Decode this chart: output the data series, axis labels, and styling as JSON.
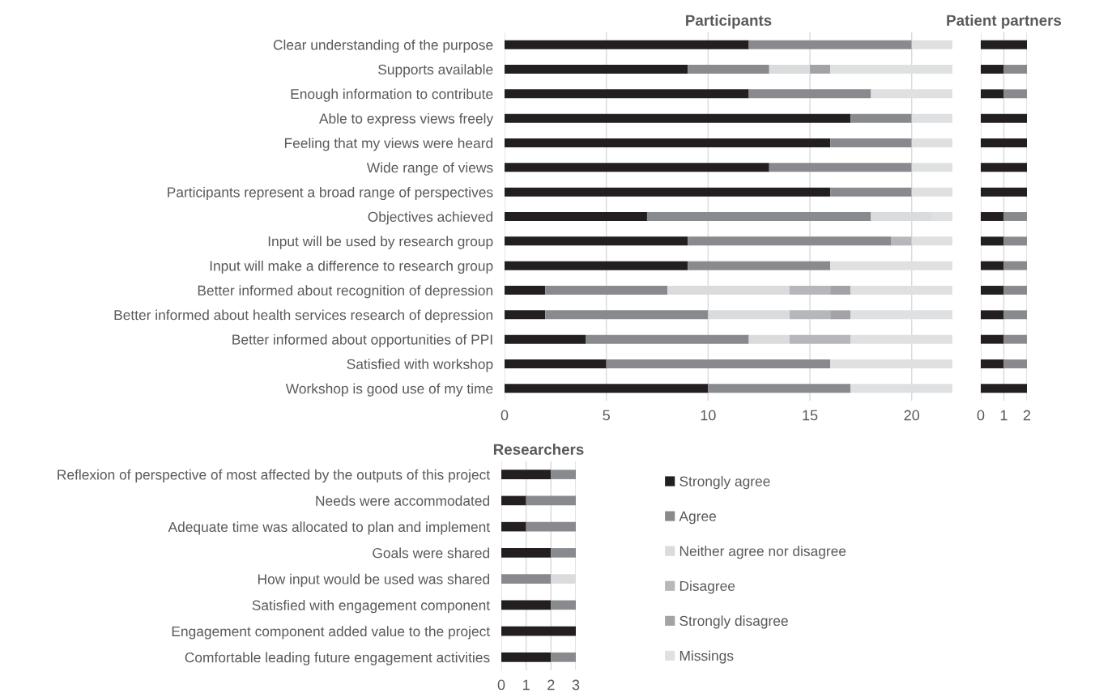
{
  "chart_data": [
    {
      "type": "bar",
      "orientation": "horizontal",
      "stacked": true,
      "title": "Participants",
      "grid": "x",
      "legend": "bottom",
      "xlim": [
        0,
        22
      ],
      "xticks": [
        0,
        5,
        10,
        15,
        20
      ],
      "categories": [
        "Clear understanding of the purpose",
        "Supports available",
        "Enough information to contribute",
        "Able to express views freely",
        "Feeling that my views were heard",
        "Wide range of views",
        "Participants represent a broad range of perspectives",
        "Objectives achieved",
        "Input will be used by research group",
        "Input will make a difference to research group",
        "Better informed about recognition of depression",
        "Better informed about health services research of depression",
        "Better informed about opportunities of PPI",
        "Satisfied with workshop",
        "Workshop is good use of my time"
      ],
      "series": [
        {
          "name": "Strongly agree",
          "color": "#231f20",
          "values": [
            12,
            9,
            12,
            17,
            16,
            13,
            16,
            7,
            9,
            9,
            2,
            2,
            4,
            5,
            10
          ]
        },
        {
          "name": "Agree",
          "color": "#898a8d",
          "values": [
            8,
            4,
            6,
            3,
            4,
            7,
            4,
            11,
            10,
            7,
            6,
            8,
            8,
            11,
            7
          ]
        },
        {
          "name": "Neither agree nor disagree",
          "color": "#dadbdd",
          "values": [
            0,
            2,
            0,
            0,
            0,
            0,
            0,
            3,
            0,
            0,
            6,
            4,
            2,
            0,
            0
          ]
        },
        {
          "name": "Disagree",
          "color": "#b6b7ba",
          "values": [
            0,
            0,
            0,
            0,
            0,
            0,
            0,
            0,
            1,
            0,
            2,
            2,
            3,
            0,
            0
          ]
        },
        {
          "name": "Strongly disagree",
          "color": "#a2a3a6",
          "values": [
            0,
            1,
            0,
            0,
            0,
            0,
            0,
            0,
            0,
            0,
            1,
            1,
            0,
            0,
            0
          ]
        },
        {
          "name": "Missings",
          "color": "#dfe0e2",
          "values": [
            2,
            6,
            4,
            2,
            2,
            2,
            2,
            1,
            2,
            6,
            5,
            5,
            5,
            6,
            5
          ]
        }
      ]
    },
    {
      "type": "bar",
      "orientation": "horizontal",
      "stacked": true,
      "title": "Patient partners",
      "grid": "x",
      "xlim": [
        0,
        2
      ],
      "xticks": [
        0,
        1,
        2
      ],
      "tick_labels": "x",
      "categories": [
        null,
        null,
        null,
        null,
        null,
        null,
        null,
        null,
        null,
        null,
        null,
        null,
        null,
        null,
        null
      ],
      "series": [
        {
          "color": "#231f20",
          "values": [
            2,
            1,
            1,
            2,
            2,
            2,
            2,
            1,
            1,
            1,
            1,
            1,
            1,
            1,
            2
          ]
        },
        {
          "color": "#898a8d",
          "values": [
            0,
            1,
            1,
            0,
            0,
            0,
            0,
            1,
            1,
            1,
            1,
            1,
            1,
            1,
            0
          ]
        }
      ]
    },
    {
      "type": "bar",
      "orientation": "horizontal",
      "stacked": true,
      "title": "Researchers",
      "grid": "x",
      "xlim": [
        0,
        3
      ],
      "xticks": [
        0,
        1,
        2,
        3
      ],
      "categories": [
        "Reflexion of perspective of most affected by the outputs of this project",
        "Needs were accommodated",
        "Adequate time was allocated to plan and implement",
        "Goals were shared",
        "How input would be used was shared",
        "Satisfied with engagement component",
        "Engagement component added value to the project",
        "Comfortable leading future engagement activities"
      ],
      "series": [
        {
          "color": "#231f20",
          "values": [
            2,
            1,
            1,
            2,
            0,
            2,
            3,
            2
          ]
        },
        {
          "color": "#898a8d",
          "values": [
            1,
            2,
            2,
            1,
            2,
            1,
            0,
            1
          ]
        },
        {
          "color": "#dadbdd",
          "values": [
            0,
            0,
            0,
            0,
            1,
            0,
            0,
            0
          ]
        }
      ]
    }
  ]
}
